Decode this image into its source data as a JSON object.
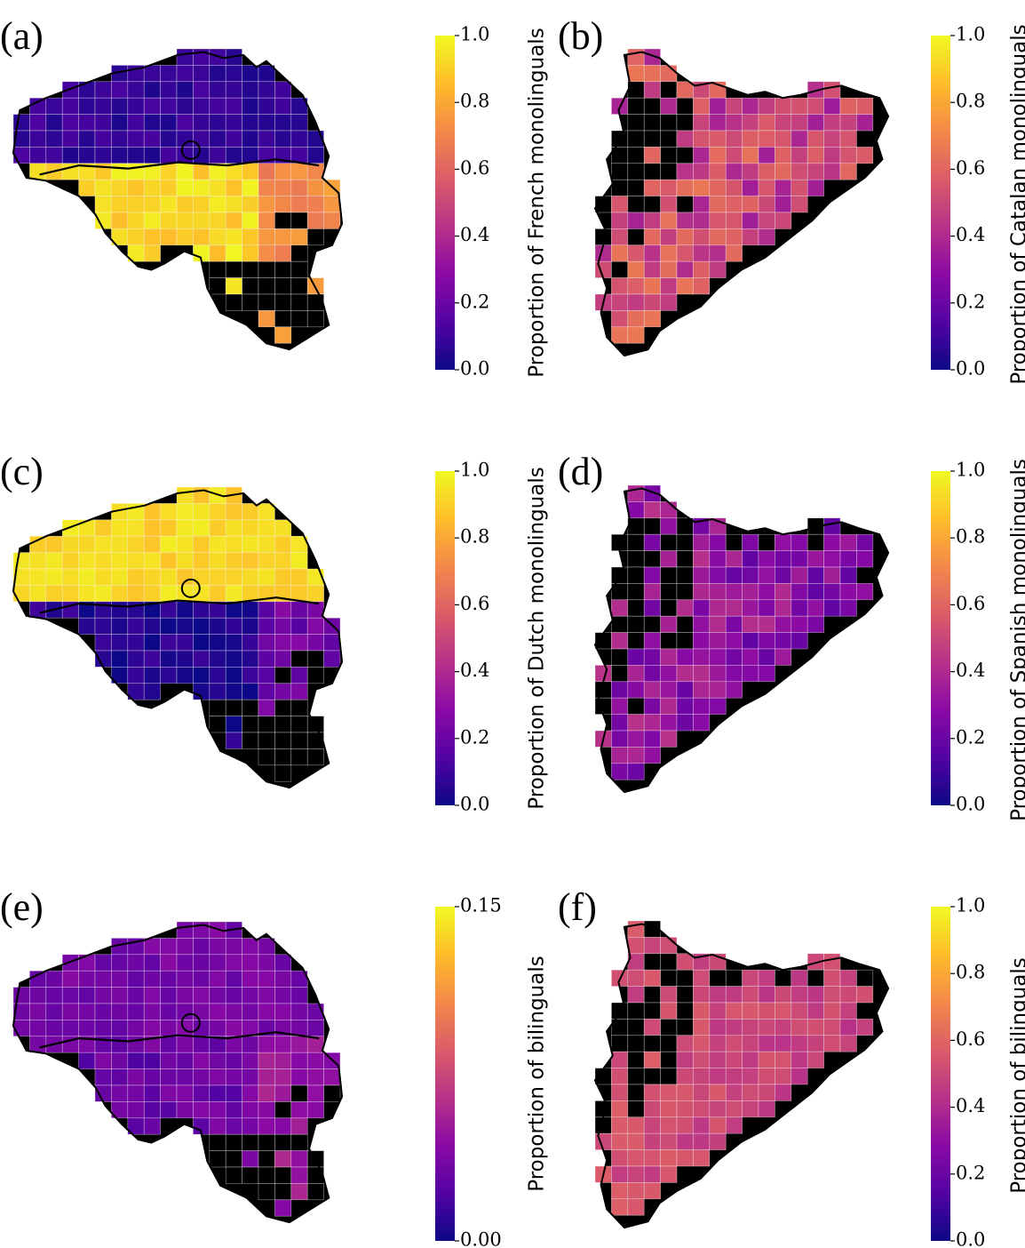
{
  "colormap": "plasma",
  "colormap_stops": [
    "#0d0887",
    "#5302a3",
    "#8b0aa5",
    "#b83289",
    "#db5c68",
    "#f48849",
    "#febd2a",
    "#f0f921"
  ],
  "missing_color": "#000000",
  "panels": [
    {
      "label": "(a)",
      "region": "Belgium",
      "colorbar_label": "Proportion of French monolinguals",
      "ticks": [
        "0.0",
        "0.2",
        "0.4",
        "0.6",
        "0.8",
        "1.0"
      ],
      "range": [
        0,
        1
      ],
      "pattern": {
        "north": 0.08,
        "south": 0.92,
        "east_south": 0.72
      }
    },
    {
      "label": "(b)",
      "region": "Catalonia",
      "colorbar_label": "Proportion of Catalan monolinguals",
      "ticks": [
        "0.0",
        "0.2",
        "0.4",
        "0.6",
        "0.8",
        "1.0"
      ],
      "range": [
        0,
        1
      ],
      "pattern": {
        "mean": 0.5,
        "spread": 0.15
      }
    },
    {
      "label": "(c)",
      "region": "Belgium",
      "colorbar_label": "Proportion of Dutch monolinguals",
      "ticks": [
        "0.0",
        "0.2",
        "0.4",
        "0.6",
        "0.8",
        "1.0"
      ],
      "range": [
        0,
        1
      ],
      "pattern": {
        "north": 0.92,
        "south": 0.04,
        "east_south": 0.22
      }
    },
    {
      "label": "(d)",
      "region": "Catalonia",
      "colorbar_label": "Proportion of Spanish monolinguals",
      "ticks": [
        "0.0",
        "0.2",
        "0.4",
        "0.6",
        "0.8",
        "1.0"
      ],
      "range": [
        0,
        1
      ],
      "pattern": {
        "mean": 0.3,
        "spread": 0.12
      }
    },
    {
      "label": "(e)",
      "region": "Belgium",
      "colorbar_label": "Proportion of bilinguals",
      "ticks": [
        "0.00",
        "0.15"
      ],
      "range": [
        0,
        0.15
      ],
      "pattern": {
        "north": 0.035,
        "south": 0.03,
        "east_south": 0.05
      }
    },
    {
      "label": "(f)",
      "region": "Catalonia",
      "colorbar_label": "Proportion of bilinguals",
      "ticks": [
        "0.0",
        "0.2",
        "0.4",
        "0.6",
        "0.8",
        "1.0"
      ],
      "range": [
        0,
        1
      ],
      "pattern": {
        "mean": 0.5,
        "spread": 0.06
      }
    }
  ]
}
